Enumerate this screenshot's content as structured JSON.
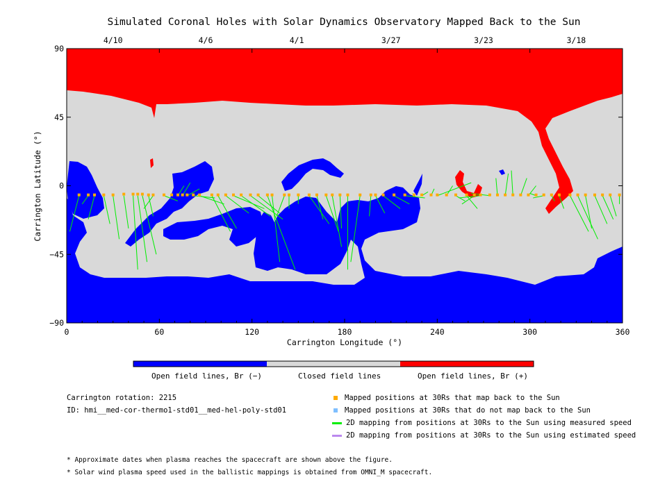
{
  "title": "Simulated Coronal Holes with Solar Dynamics Observatory Mapped Back to the Sun",
  "colors": {
    "open_negative": "#0000ff",
    "closed": "#d9d9d9",
    "open_positive": "#ff0000",
    "mapped_back": "#ffaa00",
    "not_mapped": "#7fbfff",
    "measured_speed": "#00ee00",
    "estimated_speed": "#bb88ee"
  },
  "chart_data": {
    "type": "map",
    "xlabel": "Carrington Longitude (°)",
    "ylabel": "Carrington Latitude (°)",
    "xlim": [
      0,
      360
    ],
    "ylim": [
      -90,
      90
    ],
    "x_ticks": [
      "0",
      "60",
      "120",
      "180",
      "240",
      "300",
      "360"
    ],
    "y_ticks": [
      "90",
      "45",
      "0",
      "−45",
      "−90"
    ],
    "x_tick_values": [
      0,
      60,
      120,
      180,
      240,
      300,
      360
    ],
    "y_tick_values": [
      90,
      45,
      0,
      -45,
      -90
    ],
    "top_dates": [
      {
        "label": "4/10",
        "lon": 30
      },
      {
        "label": "4/6",
        "lon": 90
      },
      {
        "label": "4/1",
        "lon": 149
      },
      {
        "label": "3/27",
        "lon": 210
      },
      {
        "label": "3/23",
        "lon": 270
      },
      {
        "label": "3/18",
        "lon": 330
      }
    ],
    "spacecraft_latitude": -6.5,
    "mapped_longitudes": [
      8,
      14,
      18,
      24,
      30,
      37,
      43,
      46,
      49,
      53,
      56,
      63,
      68,
      72,
      75,
      78,
      82,
      86,
      94,
      98,
      103,
      108,
      113,
      119,
      124,
      130,
      133,
      141,
      144,
      150,
      157,
      162,
      168,
      172,
      177,
      182,
      190,
      197,
      200,
      205,
      212,
      219,
      225,
      230,
      236,
      240,
      246,
      252,
      259,
      264,
      268,
      274,
      279,
      284,
      289,
      294,
      299,
      304,
      309,
      314,
      319,
      326,
      331,
      336,
      342,
      347,
      352,
      358
    ],
    "mapped_latitudes": [
      -6,
      -6,
      -6,
      -6,
      -6,
      -5.5,
      -5.5,
      -5.5,
      -5.5,
      -6,
      -6,
      -6,
      -6,
      -6,
      -6,
      -6,
      -6,
      -6,
      -6,
      -6,
      -6,
      -6,
      -6,
      -6,
      -6,
      -6,
      -6,
      -6,
      -6,
      -6,
      -6,
      -6,
      -6,
      -6,
      -6,
      -6,
      -6,
      -6,
      -6,
      -6,
      -6,
      -6,
      -6,
      -6,
      -6,
      -6,
      -6,
      -6,
      -6,
      -6,
      -6,
      -6,
      -6,
      -6,
      -6,
      -6,
      -6,
      -6,
      -6,
      -6,
      -6,
      -6,
      -6,
      -6,
      -6,
      -6,
      -6,
      -6
    ],
    "source_longitudes": [
      8,
      14,
      18,
      24,
      30,
      37,
      43,
      46,
      49,
      53,
      56,
      63,
      68,
      72,
      75,
      78,
      82,
      86,
      94,
      98,
      103,
      108,
      113,
      119,
      124,
      130,
      133,
      141,
      144,
      150,
      157,
      162,
      168,
      172,
      177,
      182,
      190,
      197,
      200,
      205,
      212,
      219,
      225,
      230,
      236,
      240,
      246,
      252,
      259,
      264,
      268,
      274,
      279,
      284,
      289,
      294,
      299,
      304,
      309,
      314,
      319,
      326,
      331,
      336,
      342,
      347,
      352,
      358
    ],
    "footpoint_longitudes": [
      2,
      10,
      14,
      28,
      34,
      40,
      46,
      52,
      58,
      56,
      50,
      72,
      68,
      76,
      80,
      86,
      96,
      102,
      106,
      110,
      118,
      128,
      132,
      140,
      138,
      148,
      138,
      136,
      144,
      150,
      170,
      166,
      176,
      178,
      178,
      182,
      184,
      196,
      206,
      216,
      222,
      232,
      224,
      234,
      238,
      262,
      250,
      258,
      266,
      256,
      254,
      262,
      278,
      286,
      288,
      298,
      304,
      300,
      302,
      316,
      322,
      338,
      344,
      340,
      350,
      354,
      356,
      358
    ],
    "footpoint_latitudes": [
      -30,
      -12,
      -22,
      -25,
      -35,
      -28,
      -55,
      -50,
      -45,
      -20,
      -15,
      -10,
      -5,
      0,
      2,
      -2,
      -8,
      -12,
      -30,
      -28,
      -18,
      -15,
      -20,
      -22,
      -18,
      -55,
      -50,
      -20,
      -15,
      -12,
      -25,
      -22,
      -30,
      -40,
      -28,
      -55,
      -50,
      -20,
      -18,
      -15,
      -12,
      -8,
      -5,
      -4,
      -2,
      2,
      0,
      -10,
      -15,
      -12,
      -8,
      -5,
      5,
      8,
      10,
      5,
      0,
      -5,
      -8,
      -10,
      -15,
      -30,
      -35,
      -28,
      -25,
      -22,
      -20,
      -12
    ],
    "colorbar": [
      {
        "label": "Open field lines, Br (−)",
        "color": "#0000ff"
      },
      {
        "label": "Closed field lines",
        "color": "#d9d9d9"
      },
      {
        "label": "Open field lines, Br (+)",
        "color": "#ff0000"
      }
    ]
  },
  "info": {
    "rotation": "Carrington rotation: 2215",
    "id": "ID: hmi__med-cor-thermo1-std01__med-hel-poly-std01"
  },
  "legend": [
    {
      "label": "Mapped positions at 30Rs that map back to the Sun",
      "kind": "square",
      "color": "#ffaa00"
    },
    {
      "label": "Mapped positions at 30Rs that do not map back to the Sun",
      "kind": "square",
      "color": "#7fbfff"
    },
    {
      "label": "2D mapping from positions at 30Rs to the Sun using measured speed",
      "kind": "line",
      "color": "#00ee00"
    },
    {
      "label": "2D mapping from positions at 30Rs to the Sun using estimated speed",
      "kind": "line",
      "color": "#bb88ee"
    }
  ],
  "footnotes": [
    "* Approximate dates when plasma reaches the spacecraft are shown above the figure.",
    "* Solar wind plasma speed used in the ballistic mappings is obtained from OMNI_M spacecraft."
  ]
}
